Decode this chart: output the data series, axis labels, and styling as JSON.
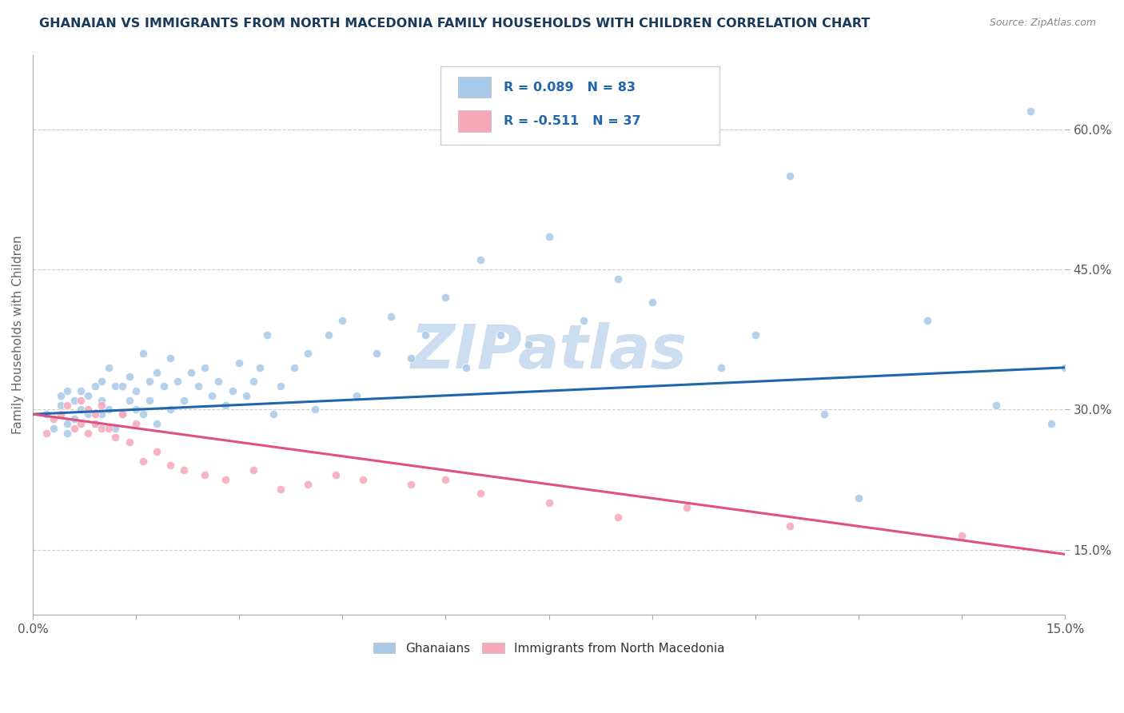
{
  "title": "GHANAIAN VS IMMIGRANTS FROM NORTH MACEDONIA FAMILY HOUSEHOLDS WITH CHILDREN CORRELATION CHART",
  "source_text": "Source: ZipAtlas.com",
  "ylabel": "Family Households with Children",
  "watermark": "ZIPatlas",
  "xlim": [
    0.0,
    0.15
  ],
  "ylim": [
    0.08,
    0.68
  ],
  "yticks": [
    0.15,
    0.3,
    0.45,
    0.6
  ],
  "ytick_labels": [
    "15.0%",
    "30.0%",
    "45.0%",
    "60.0%"
  ],
  "xticks": [
    0.0,
    0.015,
    0.03,
    0.045,
    0.06,
    0.075,
    0.09,
    0.105,
    0.12,
    0.135,
    0.15
  ],
  "blue_R": 0.089,
  "blue_N": 83,
  "pink_R": -0.511,
  "pink_N": 37,
  "blue_color": "#a8c8e8",
  "pink_color": "#f4a8b8",
  "blue_line_color": "#2166ac",
  "pink_line_color": "#e05080",
  "title_color": "#1a3a5c",
  "watermark_color": "#ccddef",
  "legend_color": "#2166ac",
  "blue_scatter_x": [
    0.002,
    0.003,
    0.004,
    0.004,
    0.005,
    0.005,
    0.005,
    0.006,
    0.006,
    0.007,
    0.007,
    0.008,
    0.008,
    0.009,
    0.009,
    0.01,
    0.01,
    0.01,
    0.011,
    0.011,
    0.012,
    0.012,
    0.013,
    0.013,
    0.014,
    0.014,
    0.015,
    0.015,
    0.016,
    0.016,
    0.017,
    0.017,
    0.018,
    0.018,
    0.019,
    0.02,
    0.02,
    0.021,
    0.022,
    0.023,
    0.024,
    0.025,
    0.026,
    0.027,
    0.028,
    0.029,
    0.03,
    0.031,
    0.032,
    0.033,
    0.034,
    0.035,
    0.036,
    0.038,
    0.04,
    0.041,
    0.043,
    0.045,
    0.047,
    0.05,
    0.052,
    0.055,
    0.057,
    0.06,
    0.063,
    0.065,
    0.068,
    0.072,
    0.075,
    0.08,
    0.085,
    0.09,
    0.095,
    0.1,
    0.105,
    0.11,
    0.115,
    0.12,
    0.13,
    0.14,
    0.145,
    0.148,
    0.15
  ],
  "blue_scatter_y": [
    0.295,
    0.28,
    0.305,
    0.315,
    0.275,
    0.285,
    0.32,
    0.29,
    0.31,
    0.3,
    0.32,
    0.295,
    0.315,
    0.285,
    0.325,
    0.295,
    0.31,
    0.33,
    0.3,
    0.345,
    0.28,
    0.325,
    0.295,
    0.325,
    0.31,
    0.335,
    0.3,
    0.32,
    0.36,
    0.295,
    0.33,
    0.31,
    0.285,
    0.34,
    0.325,
    0.3,
    0.355,
    0.33,
    0.31,
    0.34,
    0.325,
    0.345,
    0.315,
    0.33,
    0.305,
    0.32,
    0.35,
    0.315,
    0.33,
    0.345,
    0.38,
    0.295,
    0.325,
    0.345,
    0.36,
    0.3,
    0.38,
    0.395,
    0.315,
    0.36,
    0.4,
    0.355,
    0.38,
    0.42,
    0.345,
    0.46,
    0.38,
    0.37,
    0.485,
    0.395,
    0.44,
    0.415,
    0.6,
    0.345,
    0.38,
    0.55,
    0.295,
    0.205,
    0.395,
    0.305,
    0.62,
    0.285,
    0.345
  ],
  "pink_scatter_x": [
    0.002,
    0.003,
    0.004,
    0.005,
    0.006,
    0.007,
    0.007,
    0.008,
    0.008,
    0.009,
    0.009,
    0.01,
    0.01,
    0.011,
    0.012,
    0.013,
    0.014,
    0.015,
    0.016,
    0.018,
    0.02,
    0.022,
    0.025,
    0.028,
    0.032,
    0.036,
    0.04,
    0.044,
    0.048,
    0.055,
    0.06,
    0.065,
    0.075,
    0.085,
    0.095,
    0.11,
    0.135
  ],
  "pink_scatter_y": [
    0.275,
    0.29,
    0.295,
    0.305,
    0.28,
    0.285,
    0.31,
    0.275,
    0.3,
    0.285,
    0.295,
    0.28,
    0.305,
    0.28,
    0.27,
    0.295,
    0.265,
    0.285,
    0.245,
    0.255,
    0.24,
    0.235,
    0.23,
    0.225,
    0.235,
    0.215,
    0.22,
    0.23,
    0.225,
    0.22,
    0.225,
    0.21,
    0.2,
    0.185,
    0.195,
    0.175,
    0.165
  ]
}
